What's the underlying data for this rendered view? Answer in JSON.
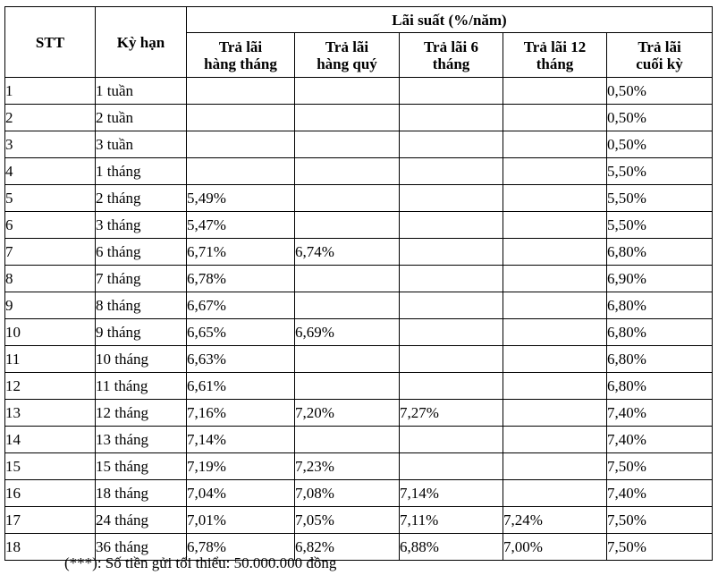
{
  "table": {
    "group_header": "Lãi suất (%/năm)",
    "col_stt": "STT",
    "col_term": "Kỳ hạn",
    "rate_headers": [
      {
        "line1": "Trả lãi",
        "line2": "hàng tháng"
      },
      {
        "line1": "Trả lãi",
        "line2": "hàng quý"
      },
      {
        "line1": "Trả lãi 6",
        "line2": "tháng"
      },
      {
        "line1": "Trả lãi 12",
        "line2": "tháng"
      },
      {
        "line1": "Trả lãi",
        "line2": "cuối kỳ"
      }
    ],
    "rows": [
      {
        "stt": "1",
        "term": "1 tuần",
        "monthly": "",
        "quarterly": "",
        "six_month": "",
        "twelve_month": "",
        "end_of_term": "0,50%"
      },
      {
        "stt": "2",
        "term": "2 tuần",
        "monthly": "",
        "quarterly": "",
        "six_month": "",
        "twelve_month": "",
        "end_of_term": "0,50%"
      },
      {
        "stt": "3",
        "term": "3 tuần",
        "monthly": "",
        "quarterly": "",
        "six_month": "",
        "twelve_month": "",
        "end_of_term": "0,50%"
      },
      {
        "stt": "4",
        "term": "1 tháng",
        "monthly": "",
        "quarterly": "",
        "six_month": "",
        "twelve_month": "",
        "end_of_term": "5,50%"
      },
      {
        "stt": "5",
        "term": "2 tháng",
        "monthly": "5,49%",
        "quarterly": "",
        "six_month": "",
        "twelve_month": "",
        "end_of_term": "5,50%"
      },
      {
        "stt": "6",
        "term": "3 tháng",
        "monthly": "5,47%",
        "quarterly": "",
        "six_month": "",
        "twelve_month": "",
        "end_of_term": "5,50%"
      },
      {
        "stt": "7",
        "term": "6 tháng",
        "monthly": "6,71%",
        "quarterly": "6,74%",
        "six_month": "",
        "twelve_month": "",
        "end_of_term": "6,80%"
      },
      {
        "stt": "8",
        "term": "7 tháng",
        "monthly": "6,78%",
        "quarterly": "",
        "six_month": "",
        "twelve_month": "",
        "end_of_term": "6,90%"
      },
      {
        "stt": "9",
        "term": "8 tháng",
        "monthly": "6,67%",
        "quarterly": "",
        "six_month": "",
        "twelve_month": "",
        "end_of_term": "6,80%"
      },
      {
        "stt": "10",
        "term": "9 tháng",
        "monthly": "6,65%",
        "quarterly": "6,69%",
        "six_month": "",
        "twelve_month": "",
        "end_of_term": "6,80%"
      },
      {
        "stt": "11",
        "term": "10 tháng",
        "monthly": "6,63%",
        "quarterly": "",
        "six_month": "",
        "twelve_month": "",
        "end_of_term": "6,80%"
      },
      {
        "stt": "12",
        "term": "11 tháng",
        "monthly": "6,61%",
        "quarterly": "",
        "six_month": "",
        "twelve_month": "",
        "end_of_term": "6,80%"
      },
      {
        "stt": "13",
        "term": "12 tháng",
        "monthly": "7,16%",
        "quarterly": "7,20%",
        "six_month": "7,27%",
        "twelve_month": "",
        "end_of_term": "7,40%"
      },
      {
        "stt": "14",
        "term": "13 tháng",
        "monthly": "7,14%",
        "quarterly": "",
        "six_month": "",
        "twelve_month": "",
        "end_of_term": "7,40%"
      },
      {
        "stt": "15",
        "term": "15 tháng",
        "monthly": "7,19%",
        "quarterly": "7,23%",
        "six_month": "",
        "twelve_month": "",
        "end_of_term": "7,50%"
      },
      {
        "stt": "16",
        "term": "18 tháng",
        "monthly": "7,04%",
        "quarterly": "7,08%",
        "six_month": "7,14%",
        "twelve_month": "",
        "end_of_term": "7,40%"
      },
      {
        "stt": "17",
        "term": "24 tháng",
        "monthly": "7,01%",
        "quarterly": "7,05%",
        "six_month": "7,11%",
        "twelve_month": "7,24%",
        "end_of_term": "7,50%"
      },
      {
        "stt": "18",
        "term": "36 tháng",
        "monthly": "6,78%",
        "quarterly": "6,82%",
        "six_month": "6,88%",
        "twelve_month": "7,00%",
        "end_of_term": "7,50%"
      }
    ]
  },
  "footnote": "(***): Số tiền gửi tối thiểu: 50.000.000 đồng"
}
